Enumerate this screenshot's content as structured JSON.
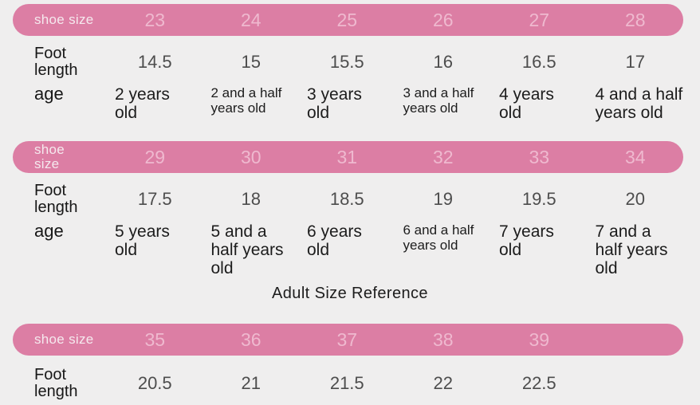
{
  "page": {
    "background_color": "#efeeee",
    "accent_pink": "#dc7ea4",
    "bar_number_color": "#efb9cf",
    "bar_label_color": "#f5e9ee"
  },
  "adult_section_title": "Adult Size Reference",
  "tables": [
    {
      "header_label": "shoe size",
      "sizes": [
        "23",
        "24",
        "25",
        "26",
        "27",
        "28"
      ],
      "foot_label": "Foot length",
      "foot_lengths": [
        "14.5",
        "15",
        "15.5",
        "16",
        "16.5",
        "17"
      ],
      "age_label": "age",
      "ages": [
        "2 years\nold",
        "2 and a half\nyears old",
        "3 years\nold",
        "3 and a half\nyears old",
        "4 years\nold",
        "4 and a half\nyears old"
      ]
    },
    {
      "header_label": "shoe size",
      "sizes": [
        "29",
        "30",
        "31",
        "32",
        "33",
        "34"
      ],
      "foot_label": "Foot length",
      "foot_lengths": [
        "17.5",
        "18",
        "18.5",
        "19",
        "19.5",
        "20"
      ],
      "age_label": "age",
      "ages": [
        "5 years\nold",
        "5 and a\nhalf years\nold",
        "6 years\nold",
        "6 and a half\nyears old",
        "7 years\nold",
        "7 and a\nhalf years\nold"
      ]
    },
    {
      "header_label": "shoe size",
      "sizes": [
        "35",
        "36",
        "37",
        "38",
        "39"
      ],
      "foot_label": "Foot length",
      "foot_lengths": [
        "20.5",
        "21",
        "21.5",
        "22",
        "22.5"
      ]
    }
  ]
}
